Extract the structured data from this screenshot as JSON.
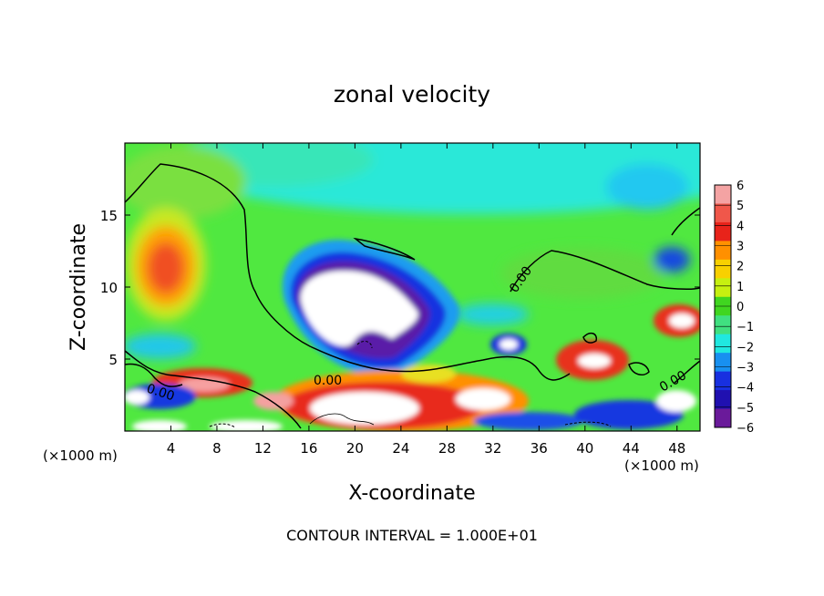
{
  "chart_data": {
    "type": "heatmap",
    "title": "zonal velocity",
    "xlabel": "X-coordinate",
    "ylabel": "Z-coordinate",
    "x_unit": "(×1000 m)",
    "x_unit_right": "(×1000 m)",
    "xlim": [
      0,
      50
    ],
    "ylim": [
      0,
      20
    ],
    "x_ticks": [
      4,
      8,
      12,
      16,
      20,
      24,
      28,
      32,
      36,
      40,
      44,
      48
    ],
    "y_ticks": [
      5,
      10,
      15
    ],
    "footer": "CONTOUR INTERVAL = 1.000E+01",
    "colorbar": {
      "ticks": [
        "6",
        "5",
        "4",
        "3",
        "2",
        "1",
        "0",
        "−1",
        "−2",
        "−3",
        "−4",
        "−5",
        "−6"
      ],
      "range": [
        -6,
        6
      ],
      "colors": [
        "#f4a3a3",
        "#f0574a",
        "#e8231a",
        "#ff9000",
        "#f8d000",
        "#c6f010",
        "#40d620",
        "#40e080",
        "#20e8e0",
        "#1890f0",
        "#1830e0",
        "#2010b0",
        "#6a1a9a"
      ]
    },
    "contour_labels": [
      "0.00",
      "0.00",
      "0.00",
      "0.00"
    ],
    "features": [
      {
        "x": 4.0,
        "z": 11.2,
        "value": 4.5
      },
      {
        "x": 19.0,
        "z": 8.5,
        "value": -8
      },
      {
        "x": 38.0,
        "z": 17.5,
        "value": -2
      },
      {
        "x": 24.0,
        "z": 2.8,
        "value": 6
      },
      {
        "x": 46.0,
        "z": 7.5,
        "value": 5
      },
      {
        "x": 47.0,
        "z": 12.0,
        "value": -3
      }
    ]
  }
}
